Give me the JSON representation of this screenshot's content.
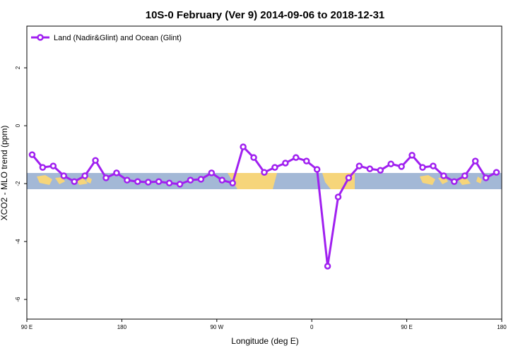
{
  "chart_data": {
    "type": "line",
    "title": "10S-0 February (Ver 9)   2014-09-06 to 2018-12-31",
    "xlabel": "Longitude (deg E)",
    "ylabel": "XCO2 - MLO trend (ppm)",
    "x": [
      95,
      105,
      115,
      125,
      135,
      145,
      155,
      165,
      175,
      185,
      195,
      205,
      215,
      225,
      235,
      245,
      255,
      265,
      275,
      285,
      295,
      305,
      315,
      325,
      335,
      345,
      355,
      365,
      375,
      385,
      395,
      405,
      415,
      425,
      435,
      445,
      455,
      465,
      475,
      485,
      495,
      505,
      515,
      525,
      535
    ],
    "series": [
      {
        "name": "Land (Nadir&Glint) and Ocean (Glint)",
        "color": "#a020f0",
        "values": [
          -1.0,
          -1.44,
          -1.39,
          -1.73,
          -1.93,
          -1.73,
          -1.2,
          -1.8,
          -1.63,
          -1.88,
          -1.93,
          -1.95,
          -1.93,
          -1.98,
          -2.02,
          -1.88,
          -1.85,
          -1.63,
          -1.88,
          -1.98,
          -0.73,
          -1.1,
          -1.61,
          -1.44,
          -1.29,
          -1.1,
          -1.22,
          -1.51,
          -4.85,
          -2.46,
          -1.8,
          -1.39,
          -1.49,
          -1.54,
          -1.32,
          -1.41,
          -1.02,
          -1.44,
          -1.39,
          -1.73,
          -1.93,
          -1.73,
          -1.22,
          -1.8,
          -1.61
        ]
      }
    ],
    "xlim": [
      90,
      540
    ],
    "xticks": [
      {
        "value": 90,
        "label": "90 E"
      },
      180,
      {
        "value": 270,
        "label": "90 W"
      },
      {
        "value": 360,
        "label": "0"
      },
      {
        "value": 450,
        "label": "90 E"
      },
      {
        "value": 540,
        "label": "180"
      }
    ],
    "ylim": [
      -6.68,
      3.44
    ],
    "yticks": [
      2,
      0,
      -2,
      -4,
      -6
    ],
    "legend": "top-left"
  }
}
